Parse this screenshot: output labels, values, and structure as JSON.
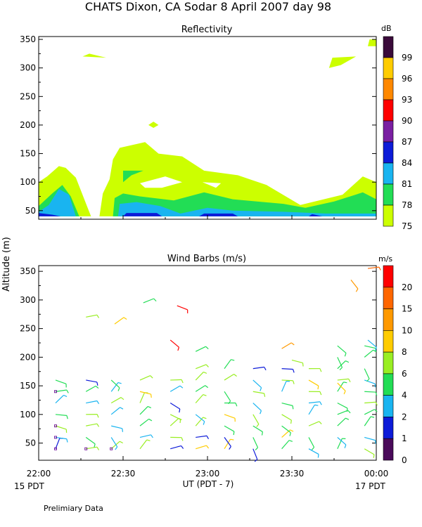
{
  "header": {
    "title": "CHATS Dixon, CA  Sodar    8 April 2007   day  98",
    "prelim": "Prelimiary Data",
    "y_axis_label": "Altitude (m)"
  },
  "x_axis": {
    "label": "UT  (PDT - 7)",
    "ticks": [
      "22:00",
      "22:30",
      "23:00",
      "23:30",
      "00:00"
    ],
    "date_left": "15 PDT",
    "date_right": "17 PDT"
  },
  "chart_data": [
    {
      "type": "heatmap",
      "title": "Reflectivity",
      "colorbar_unit": "dB",
      "colorbar_ticks": [
        "99",
        "96",
        "93",
        "90",
        "87",
        "84",
        "81",
        "78",
        "75"
      ],
      "colorbar_colors": [
        "#3a0a3a",
        "#ffcc00",
        "#ff8800",
        "#ff0000",
        "#7a1fa2",
        "#0d1bd8",
        "#19b4f0",
        "#22dd55",
        "#ccff00"
      ],
      "x_range_hours": [
        22.0,
        24.0
      ],
      "y_ticks": [
        "350",
        "300",
        "250",
        "200",
        "150",
        "100",
        "50"
      ],
      "y_range": [
        35,
        355
      ],
      "colors": {
        "c75": "#ccff00",
        "c78": "#22dd55",
        "c81": "#19b4f0",
        "c84": "#0d1bd8"
      },
      "layers": [
        {
          "level": 75,
          "color": "#ccff00",
          "polygons": [
            [
              [
                22.0,
                100
              ],
              [
                22.05,
                110
              ],
              [
                22.12,
                128
              ],
              [
                22.16,
                125
              ],
              [
                22.22,
                108
              ],
              [
                22.31,
                40
              ],
              [
                22.0,
                40
              ]
            ],
            [
              [
                22.36,
                40
              ],
              [
                22.38,
                80
              ],
              [
                22.42,
                105
              ],
              [
                22.44,
                140
              ],
              [
                22.48,
                160
              ],
              [
                22.63,
                170
              ],
              [
                22.71,
                150
              ],
              [
                22.85,
                145
              ],
              [
                22.98,
                120
              ],
              [
                23.18,
                112
              ],
              [
                23.35,
                95
              ],
              [
                23.55,
                60
              ],
              [
                23.8,
                78
              ],
              [
                23.92,
                110
              ],
              [
                24.0,
                100
              ],
              [
                24.0,
                40
              ]
            ],
            [
              [
                22.26,
                320
              ],
              [
                22.4,
                318
              ],
              [
                22.3,
                325
              ]
            ],
            [
              [
                22.65,
                200
              ],
              [
                22.68,
                206
              ],
              [
                22.71,
                200
              ],
              [
                22.68,
                195
              ]
            ],
            [
              [
                23.72,
                300
              ],
              [
                23.79,
                305
              ],
              [
                23.88,
                320
              ],
              [
                23.74,
                318
              ]
            ],
            [
              [
                23.95,
                338
              ],
              [
                24.0,
                338
              ],
              [
                24.0,
                350
              ],
              [
                23.96,
                350
              ]
            ]
          ]
        },
        {
          "level": 78,
          "color": "#22dd55",
          "polygons": [
            [
              [
                22.0,
                58
              ],
              [
                22.08,
                80
              ],
              [
                22.14,
                95
              ],
              [
                22.19,
                75
              ],
              [
                22.24,
                40
              ],
              [
                22.0,
                40
              ]
            ],
            [
              [
                22.44,
                40
              ],
              [
                22.45,
                72
              ],
              [
                22.5,
                80
              ],
              [
                22.6,
                75
              ],
              [
                22.8,
                68
              ],
              [
                22.98,
                82
              ],
              [
                23.15,
                70
              ],
              [
                23.45,
                62
              ],
              [
                23.58,
                55
              ],
              [
                23.75,
                66
              ],
              [
                23.92,
                82
              ],
              [
                24.0,
                70
              ],
              [
                24.0,
                40
              ]
            ],
            [
              [
                22.5,
                120
              ],
              [
                22.62,
                120
              ],
              [
                22.55,
                112
              ],
              [
                22.5,
                100
              ]
            ]
          ]
        },
        {
          "level": 81,
          "color": "#19b4f0",
          "polygons": [
            [
              [
                22.0,
                48
              ],
              [
                22.06,
                60
              ],
              [
                22.12,
                88
              ],
              [
                22.18,
                78
              ],
              [
                22.22,
                40
              ],
              [
                22.0,
                40
              ]
            ],
            [
              [
                22.47,
                40
              ],
              [
                22.48,
                62
              ],
              [
                22.58,
                65
              ],
              [
                22.72,
                58
              ],
              [
                22.84,
                45
              ],
              [
                23.0,
                55
              ],
              [
                23.15,
                50
              ],
              [
                23.45,
                48
              ],
              [
                23.7,
                45
              ],
              [
                24.0,
                45
              ],
              [
                24.0,
                40
              ]
            ]
          ]
        },
        {
          "level": 84,
          "color": "#0d1bd8",
          "polygons": [
            [
              [
                22.0,
                40
              ],
              [
                22.0,
                46
              ],
              [
                22.08,
                43
              ],
              [
                22.13,
                40
              ]
            ],
            [
              [
                22.5,
                40
              ],
              [
                22.52,
                46
              ],
              [
                22.7,
                46
              ],
              [
                22.73,
                40
              ]
            ],
            [
              [
                22.95,
                40
              ],
              [
                22.98,
                45
              ],
              [
                23.15,
                45
              ],
              [
                23.18,
                40
              ]
            ],
            [
              [
                23.6,
                40
              ],
              [
                23.62,
                44
              ],
              [
                23.68,
                40
              ]
            ]
          ]
        }
      ],
      "holes": [
        [
          [
            22.6,
            98
          ],
          [
            22.75,
            110
          ],
          [
            22.85,
            100
          ],
          [
            22.73,
            90
          ],
          [
            22.63,
            90
          ]
        ],
        [
          [
            22.97,
            100
          ],
          [
            23.05,
            90
          ],
          [
            23.08,
            98
          ]
        ]
      ]
    },
    {
      "type": "scatter",
      "title": "Wind Barbs (m/s)",
      "colorbar_unit": "m/s",
      "colorbar_ticks": [
        "20",
        "15",
        "10",
        "8",
        "6",
        "4",
        "2",
        "1",
        "0"
      ],
      "colorbar_colors": [
        "#ff0000",
        "#ff6600",
        "#ff9900",
        "#ffcc00",
        "#99ee22",
        "#22dd55",
        "#19b4f0",
        "#0d1bd8",
        "#4a0a5a"
      ],
      "x_range_hours": [
        22.0,
        24.0
      ],
      "y_ticks": [
        "350",
        "300",
        "250",
        "200",
        "150",
        "100",
        "50"
      ],
      "y_range": [
        20,
        360
      ],
      "columns_hours": [
        22.1,
        22.28,
        22.43,
        22.6,
        22.78,
        22.93,
        23.1,
        23.27,
        23.44,
        23.6,
        23.77,
        23.93
      ],
      "heights": [
        40,
        60,
        80,
        100,
        120,
        140,
        160,
        180,
        200,
        220
      ],
      "extras": [
        {
          "t": 22.28,
          "h": 270,
          "ws": 6
        },
        {
          "t": 22.45,
          "h": 258,
          "ws": 8
        },
        {
          "t": 22.62,
          "h": 295,
          "ws": 4
        },
        {
          "t": 22.82,
          "h": 290,
          "ws": 20
        },
        {
          "t": 22.78,
          "h": 230,
          "ws": 20
        },
        {
          "t": 22.93,
          "h": 210,
          "ws": 4
        },
        {
          "t": 23.5,
          "h": 195,
          "ws": 6
        },
        {
          "t": 23.44,
          "h": 215,
          "ws": 10
        },
        {
          "t": 23.85,
          "h": 335,
          "ws": 10
        },
        {
          "t": 23.95,
          "h": 355,
          "ws": 15
        },
        {
          "t": 23.95,
          "h": 230,
          "ws": 2
        },
        {
          "t": 23.77,
          "h": 155,
          "ws": 8
        }
      ]
    }
  ]
}
